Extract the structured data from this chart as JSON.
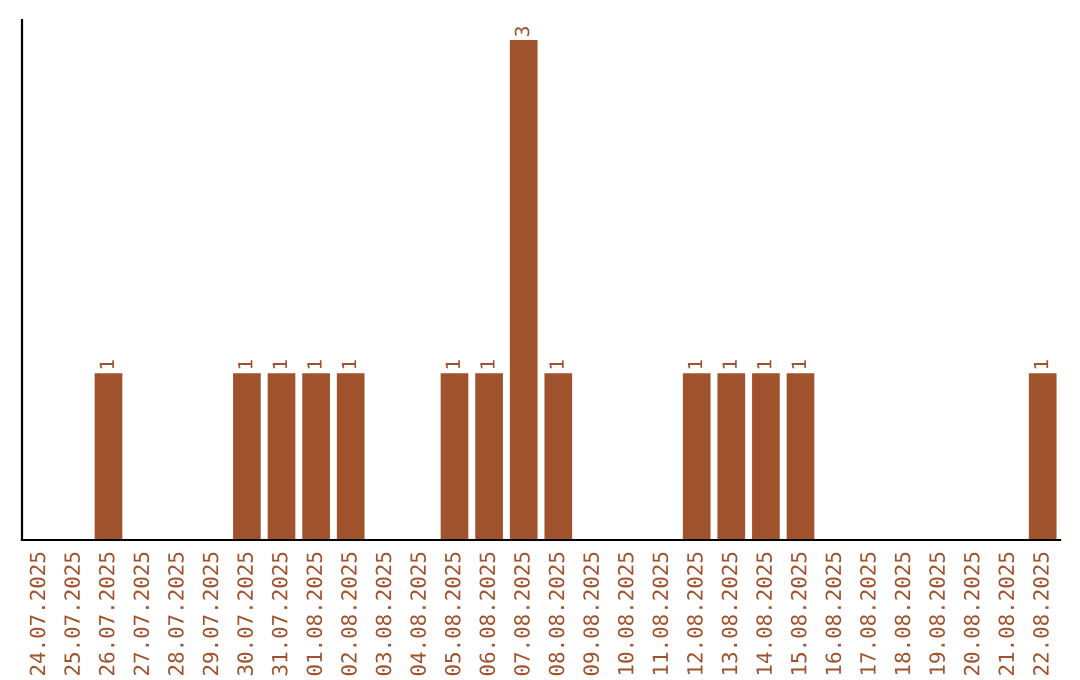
{
  "chart_data": {
    "type": "bar",
    "categories": [
      "24.07.2025",
      "25.07.2025",
      "26.07.2025",
      "27.07.2025",
      "28.07.2025",
      "29.07.2025",
      "30.07.2025",
      "31.07.2025",
      "01.08.2025",
      "02.08.2025",
      "03.08.2025",
      "04.08.2025",
      "05.08.2025",
      "06.08.2025",
      "07.08.2025",
      "08.08.2025",
      "09.08.2025",
      "10.08.2025",
      "11.08.2025",
      "12.08.2025",
      "13.08.2025",
      "14.08.2025",
      "15.08.2025",
      "16.08.2025",
      "17.08.2025",
      "18.08.2025",
      "19.08.2025",
      "20.08.2025",
      "21.08.2025",
      "22.08.2025"
    ],
    "values": [
      0,
      0,
      1,
      0,
      0,
      0,
      1,
      1,
      1,
      1,
      0,
      0,
      1,
      1,
      3,
      1,
      0,
      0,
      0,
      1,
      1,
      1,
      1,
      0,
      0,
      0,
      0,
      0,
      0,
      1
    ],
    "value_labels": [
      null,
      null,
      "1",
      null,
      null,
      null,
      "1",
      "1",
      "1",
      "1",
      null,
      null,
      "1",
      "1",
      "3",
      "1",
      null,
      null,
      null,
      "1",
      "1",
      "1",
      "1",
      null,
      null,
      null,
      null,
      null,
      null,
      "1"
    ],
    "color": "#a0522d",
    "grid": false,
    "legend": false
  }
}
